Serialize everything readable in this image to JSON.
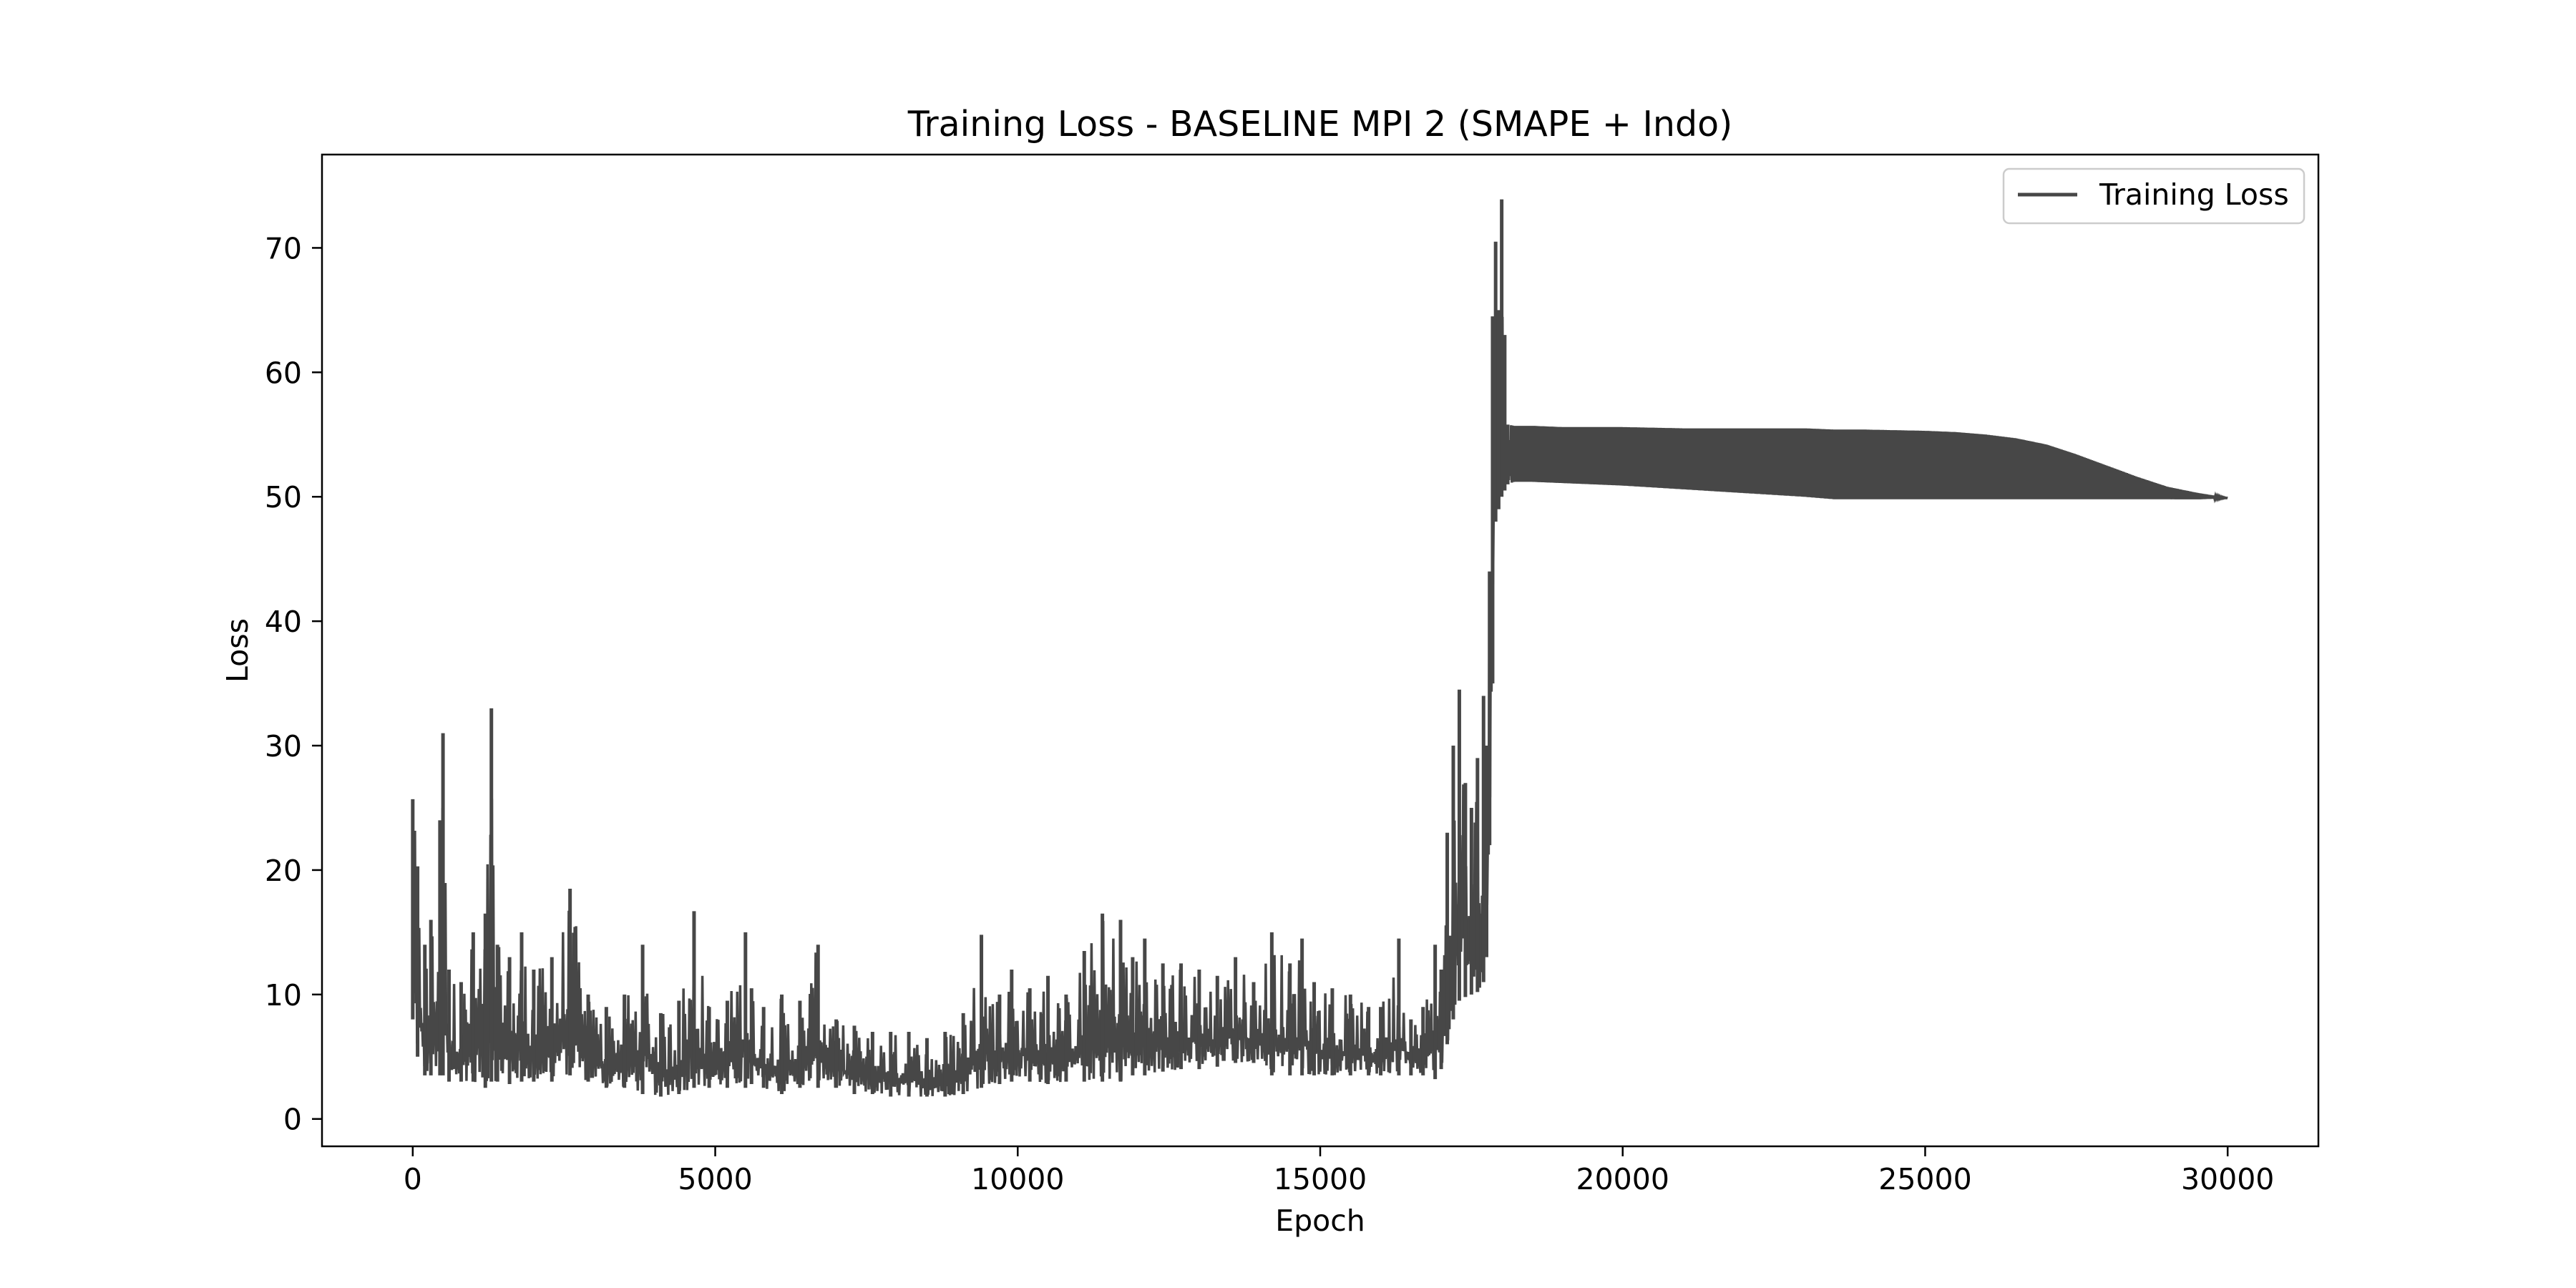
{
  "chart_data": {
    "type": "line",
    "title": "Training Loss - BASELINE MPI 2 (SMAPE + Indo)",
    "xlabel": "Epoch",
    "ylabel": "Loss",
    "xlim": [
      -1500,
      31500
    ],
    "ylim": [
      -2.2,
      77.5
    ],
    "xticks": [
      0,
      5000,
      10000,
      15000,
      20000,
      25000,
      30000
    ],
    "yticks": [
      0,
      10,
      20,
      30,
      40,
      50,
      60,
      70
    ],
    "xtick_labels": [
      "0",
      "5000",
      "10000",
      "15000",
      "20000",
      "25000",
      "30000"
    ],
    "ytick_labels": [
      "0",
      "10",
      "20",
      "30",
      "40",
      "50",
      "60",
      "70"
    ],
    "grid": false,
    "legend": {
      "placement": "top-right",
      "entries": [
        "Training Loss"
      ]
    },
    "series": [
      {
        "name": "Training Loss",
        "color": "#474747",
        "band_note": "dense oscillating envelope",
        "x": [
          0,
          80,
          200,
          300,
          450,
          500,
          600,
          800,
          1000,
          1200,
          1300,
          1400,
          1600,
          1800,
          2000,
          2300,
          2600,
          2900,
          3200,
          3500,
          3800,
          4100,
          4400,
          4650,
          4900,
          5200,
          5500,
          5600,
          5800,
          6100,
          6400,
          6700,
          7000,
          7300,
          7600,
          7900,
          8200,
          8500,
          8800,
          9100,
          9400,
          9700,
          9900,
          10200,
          10500,
          10800,
          11100,
          11400,
          11700,
          11900,
          12100,
          12400,
          12700,
          13000,
          13300,
          13600,
          13900,
          14200,
          14500,
          14700,
          14900,
          15200,
          15500,
          15800,
          16000,
          16300,
          16500,
          16700,
          16900,
          17000,
          17100,
          17200,
          17300,
          17400,
          17500,
          17600,
          17700,
          17750,
          17800,
          17850,
          17900,
          17950,
          18000,
          18050,
          18100,
          18200,
          18500,
          19000,
          20000,
          21000,
          22000,
          23000,
          23500,
          24000,
          25000,
          25500,
          26000,
          26500,
          27000,
          27500,
          28000,
          28500,
          29000,
          29500,
          30000
        ],
        "upper": [
          25.7,
          20.3,
          14,
          16,
          24,
          31,
          12,
          11,
          15,
          16.5,
          33,
          14,
          13,
          15,
          12,
          13,
          18.5,
          10,
          9,
          10,
          14,
          8.5,
          9.5,
          16.7,
          9,
          9.5,
          15,
          10.5,
          9,
          10,
          9.5,
          14,
          8,
          7.5,
          7,
          7,
          7,
          6.5,
          7,
          8.5,
          14.8,
          10,
          12,
          10.5,
          11.5,
          10,
          13.5,
          16.5,
          16,
          13,
          14.5,
          12.5,
          12.5,
          12,
          11.5,
          13,
          11,
          15,
          12.5,
          14.5,
          11,
          10.5,
          10,
          9,
          9,
          14.5,
          8,
          9,
          14,
          12,
          23,
          30,
          34.5,
          27,
          25,
          29,
          34,
          30,
          44,
          64.5,
          70.5,
          65,
          73.9,
          63,
          55.8,
          55.7,
          55.7,
          55.6,
          55.6,
          55.5,
          55.5,
          55.5,
          55.4,
          55.4,
          55.3,
          55.2,
          55,
          54.7,
          54.2,
          53.4,
          52.5,
          51.6,
          50.8,
          50.3,
          49.9
        ],
        "lower": [
          8,
          5,
          3.5,
          3.5,
          3.5,
          3.5,
          3,
          3,
          3,
          2.5,
          3,
          3,
          2.8,
          3,
          3,
          3,
          3.5,
          3,
          2.5,
          2.5,
          2,
          1.8,
          2,
          2.5,
          2.5,
          2.5,
          2.5,
          2.8,
          2.5,
          2,
          2.5,
          2.5,
          2.5,
          2,
          2,
          1.8,
          1.8,
          1.8,
          1.8,
          2,
          2.5,
          2.8,
          3,
          3,
          2.8,
          3,
          3,
          3,
          3,
          3.5,
          3.5,
          3.8,
          4,
          4,
          4.2,
          4.5,
          4.5,
          3.5,
          3.5,
          3.5,
          3.5,
          3.5,
          3.5,
          3.5,
          3.5,
          3.5,
          3.5,
          3.5,
          3.2,
          4,
          6,
          8,
          9.5,
          9.8,
          10,
          10.2,
          11,
          13,
          22,
          35,
          48,
          49,
          50,
          50.5,
          51,
          51.2,
          51.2,
          51.1,
          50.9,
          50.6,
          50.3,
          50,
          49.8,
          49.8,
          49.8,
          49.8,
          49.8,
          49.8,
          49.8,
          49.8,
          49.8,
          49.8,
          49.8,
          49.8,
          49.9
        ]
      }
    ]
  }
}
